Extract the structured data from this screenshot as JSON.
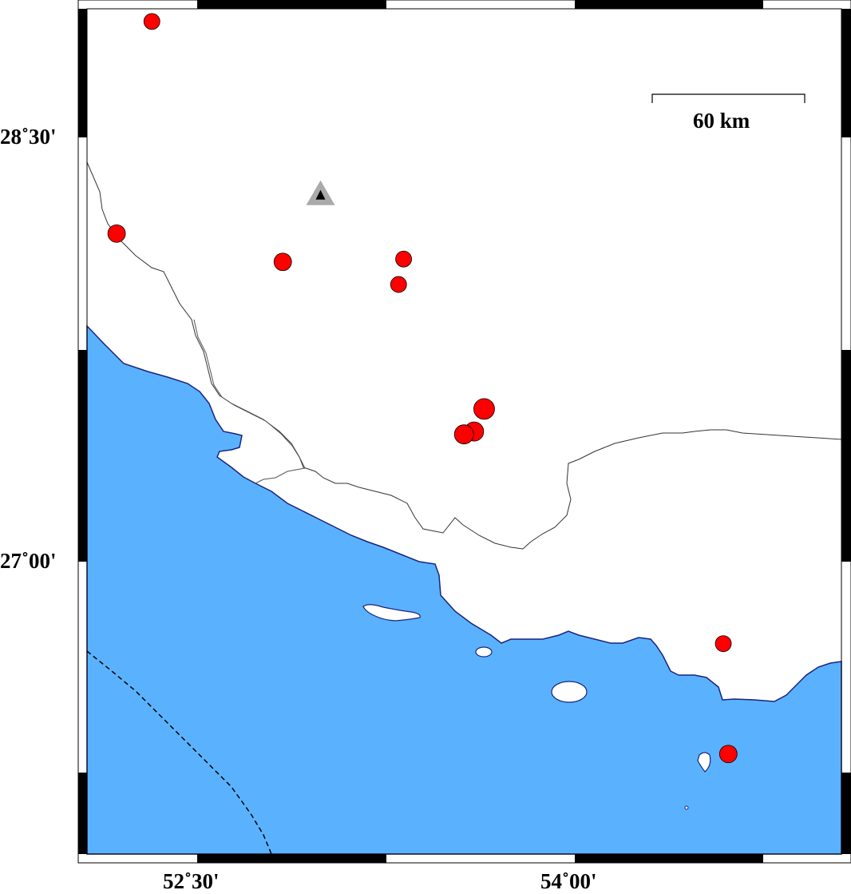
{
  "map": {
    "extent": {
      "lon_min": 52.07,
      "lon_max": 55.06,
      "lat_min": 25.97,
      "lat_max": 28.95
    },
    "colors": {
      "sea": "#5ab2fe",
      "land": "#ffffff",
      "coastline": "#1a237e",
      "border": "#333333",
      "event": "#ff0000",
      "station_outer": "#aaaaaa",
      "station_inner": "#000000"
    },
    "x_ticks": [
      {
        "value": 52.5,
        "label": "52˚30'"
      },
      {
        "value": 54.0,
        "label": "54˚00'"
      }
    ],
    "y_ticks": [
      {
        "value": 28.5,
        "label": "28˚30'"
      },
      {
        "value": 27.0,
        "label": "27˚00'"
      }
    ],
    "scale_bar": {
      "label": "60 km"
    },
    "events": [
      {
        "lon": 52.32,
        "lat": 28.91
      },
      {
        "lon": 52.18,
        "lat": 28.16
      },
      {
        "lon": 52.84,
        "lat": 28.06
      },
      {
        "lon": 53.32,
        "lat": 28.07
      },
      {
        "lon": 53.3,
        "lat": 27.98
      },
      {
        "lon": 53.64,
        "lat": 27.54
      },
      {
        "lon": 53.6,
        "lat": 27.46
      },
      {
        "lon": 53.56,
        "lat": 27.45
      },
      {
        "lon": 54.59,
        "lat": 26.71
      },
      {
        "lon": 54.61,
        "lat": 26.32
      }
    ],
    "station": {
      "lon": 52.99,
      "lat": 28.3,
      "icon": "triangle-icon"
    }
  }
}
